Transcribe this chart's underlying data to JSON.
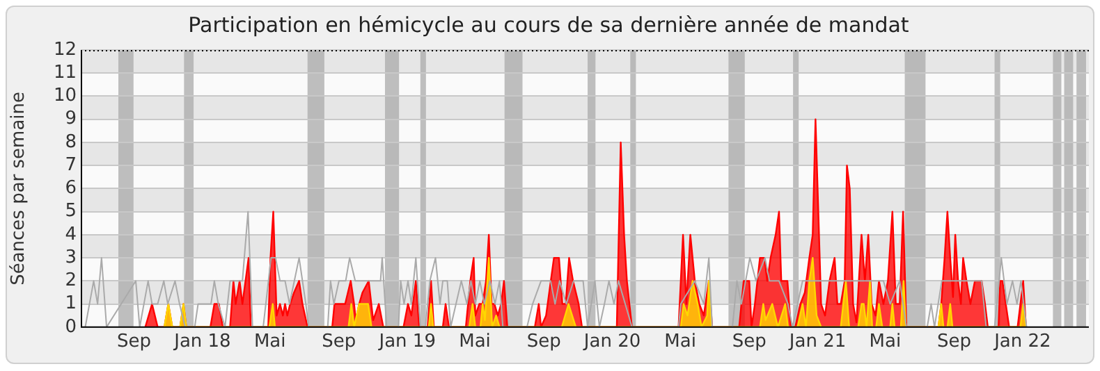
{
  "chart_data": {
    "type": "area",
    "title": "Participation en hémicycle au cours de sa dernière année de mandat",
    "ylabel": "Séances par semaine",
    "xlim": [
      "2017-05-29",
      "2022-04-29"
    ],
    "ylim": [
      0,
      12
    ],
    "yticks": [
      0,
      1,
      2,
      3,
      4,
      5,
      6,
      7,
      8,
      9,
      10,
      11,
      12
    ],
    "xticks": [
      {
        "value": "2017-09-01",
        "label": "Sep"
      },
      {
        "value": "2018-01-01",
        "label": "Jan 18"
      },
      {
        "value": "2018-05-01",
        "label": "Mai"
      },
      {
        "value": "2018-09-01",
        "label": "Sep"
      },
      {
        "value": "2019-01-01",
        "label": "Jan 19"
      },
      {
        "value": "2019-05-01",
        "label": "Mai"
      },
      {
        "value": "2019-09-01",
        "label": "Sep"
      },
      {
        "value": "2020-01-01",
        "label": "Jan 20"
      },
      {
        "value": "2020-05-01",
        "label": "Mai"
      },
      {
        "value": "2020-09-01",
        "label": "Sep"
      },
      {
        "value": "2021-01-01",
        "label": "Jan 21"
      },
      {
        "value": "2021-05-01",
        "label": "Mai"
      },
      {
        "value": "2021-09-01",
        "label": "Sep"
      },
      {
        "value": "2022-01-01",
        "label": "Jan 22"
      }
    ],
    "grid": "y",
    "legend": false,
    "marker": "none",
    "series": [
      {
        "type": "line",
        "color": "#aaaaaa",
        "x": [
          "2017-06-06",
          "2017-06-21",
          "2017-06-28",
          "2017-07-05",
          "2017-07-14",
          "2017-09-04",
          "2017-09-11",
          "2017-09-26",
          "2017-10-03",
          "2017-10-13",
          "2017-10-24",
          "2017-10-31",
          "2017-11-13",
          "2017-11-21",
          "2017-12-01",
          "2017-12-18",
          "2017-12-24",
          "2018-01-16",
          "2018-01-22",
          "2018-01-29",
          "2018-02-10",
          "2018-02-19",
          "2018-03-13",
          "2018-03-23",
          "2018-03-31",
          "2018-04-19",
          "2018-05-03",
          "2018-05-11",
          "2018-05-19",
          "2018-05-28",
          "2018-06-05",
          "2018-06-22",
          "2018-07-04",
          "2018-07-09",
          "2018-08-12",
          "2018-08-17",
          "2018-08-23",
          "2018-09-01",
          "2018-09-13",
          "2018-09-20",
          "2018-09-30",
          "2018-11-14",
          "2018-11-17",
          "2018-11-25",
          "2018-12-16",
          "2018-12-20",
          "2018-12-26",
          "2019-01-02",
          "2019-01-08",
          "2019-01-16",
          "2019-01-24",
          "2019-02-02",
          "2019-02-10",
          "2019-02-20",
          "2019-02-28",
          "2019-03-05",
          "2019-03-13",
          "2019-03-19",
          "2019-04-07",
          "2019-04-17",
          "2019-04-24",
          "2019-05-02",
          "2019-05-10",
          "2019-05-18",
          "2019-05-28",
          "2019-06-06",
          "2019-06-14",
          "2019-06-20",
          "2019-08-02",
          "2019-08-12",
          "2019-08-27",
          "2019-09-13",
          "2019-09-21",
          "2019-09-29",
          "2019-10-11",
          "2019-10-24",
          "2019-11-10",
          "2019-11-18",
          "2019-12-01",
          "2019-12-09",
          "2019-12-18",
          "2019-12-26",
          "2020-01-04",
          "2020-01-12",
          "2020-02-05",
          "2020-04-28",
          "2020-05-02",
          "2020-05-27",
          "2020-06-12",
          "2020-06-21",
          "2020-06-27",
          "2020-08-02",
          "2020-08-10",
          "2020-08-18",
          "2020-09-02",
          "2020-09-13",
          "2020-09-29",
          "2020-10-07",
          "2020-10-24",
          "2020-11-09",
          "2020-11-17",
          "2020-12-05",
          "2020-12-21",
          "2021-01-15",
          "2021-02-09",
          "2021-03-13",
          "2021-04-11",
          "2021-04-28",
          "2021-05-10",
          "2021-05-27",
          "2021-06-08",
          "2021-07-15",
          "2021-07-22",
          "2021-07-28",
          "2021-08-10",
          "2021-08-27",
          "2021-09-21",
          "2021-10-08",
          "2021-10-20",
          "2021-10-28",
          "2021-11-12",
          "2021-11-24",
          "2021-12-04",
          "2021-12-14",
          "2021-12-22",
          "2021-12-29",
          "2022-01-08"
        ],
        "values": [
          0,
          2,
          1,
          3,
          0,
          2,
          0,
          2,
          1,
          1,
          2,
          1,
          2,
          1,
          0,
          0,
          1,
          1,
          2,
          1,
          0,
          2,
          2,
          5,
          0,
          0,
          3,
          3,
          2,
          2,
          1,
          3,
          1,
          0,
          0,
          2,
          1,
          2,
          2,
          3,
          2,
          2,
          3,
          0,
          0,
          2,
          1,
          2,
          1,
          3,
          0,
          0,
          2,
          3,
          1,
          2,
          2,
          0,
          2,
          1,
          2,
          1,
          2,
          1,
          2,
          1,
          2,
          0,
          0,
          1,
          2,
          2,
          1,
          2,
          1,
          2,
          2,
          0,
          2,
          0,
          1,
          2,
          1,
          2,
          0,
          0,
          1,
          2,
          1,
          3,
          0,
          0,
          2,
          1,
          3,
          2,
          3,
          2,
          2,
          1,
          0,
          2,
          2,
          2,
          2,
          2,
          2,
          2,
          1,
          2,
          0,
          0,
          1,
          0,
          2,
          2,
          2,
          2,
          2,
          0,
          0,
          3,
          1,
          2,
          1,
          2,
          0
        ]
      },
      {
        "type": "area",
        "color": "#ff0000",
        "x": [
          "2017-09-21",
          "2017-10-03",
          "2017-10-13",
          "2017-10-25",
          "2017-11-01",
          "2017-11-08",
          "2017-11-22",
          "2017-11-28",
          "2017-12-03",
          "2018-01-15",
          "2018-01-22",
          "2018-01-30",
          "2018-02-06",
          "2018-02-19",
          "2018-02-25",
          "2018-03-01",
          "2018-03-08",
          "2018-03-13",
          "2018-03-24",
          "2018-03-28",
          "2018-04-28",
          "2018-05-02",
          "2018-05-07",
          "2018-05-13",
          "2018-05-19",
          "2018-05-24",
          "2018-05-28",
          "2018-06-01",
          "2018-06-06",
          "2018-06-13",
          "2018-06-22",
          "2018-06-28",
          "2018-07-07",
          "2018-08-20",
          "2018-08-24",
          "2018-09-12",
          "2018-09-22",
          "2018-09-28",
          "2018-10-01",
          "2018-10-07",
          "2018-10-13",
          "2018-10-24",
          "2018-11-01",
          "2018-11-11",
          "2018-11-19",
          "2018-12-25",
          "2019-01-02",
          "2019-01-08",
          "2019-01-16",
          "2019-01-22",
          "2019-02-06",
          "2019-02-12",
          "2019-02-17",
          "2019-03-05",
          "2019-03-10",
          "2019-03-16",
          "2019-04-15",
          "2019-04-23",
          "2019-04-29",
          "2019-05-02",
          "2019-05-09",
          "2019-05-15",
          "2019-05-21",
          "2019-05-26",
          "2019-05-31",
          "2019-06-05",
          "2019-06-11",
          "2019-06-17",
          "2019-06-22",
          "2019-06-28",
          "2019-08-16",
          "2019-08-23",
          "2019-08-27",
          "2019-09-05",
          "2019-09-19",
          "2019-09-28",
          "2019-10-04",
          "2019-10-10",
          "2019-10-16",
          "2019-10-23",
          "2019-11-02",
          "2019-11-08",
          "2020-01-09",
          "2020-01-16",
          "2020-01-22",
          "2020-01-27",
          "2020-02-05",
          "2020-04-28",
          "2020-05-06",
          "2020-05-12",
          "2020-05-19",
          "2020-05-27",
          "2020-06-04",
          "2020-06-12",
          "2020-06-21",
          "2020-06-27",
          "2020-08-14",
          "2020-08-22",
          "2020-09-01",
          "2020-09-05",
          "2020-09-11",
          "2020-09-20",
          "2020-09-28",
          "2020-10-03",
          "2020-10-09",
          "2020-10-18",
          "2020-10-24",
          "2020-10-28",
          "2020-11-08",
          "2020-11-14",
          "2020-11-22",
          "2020-12-01",
          "2020-12-09",
          "2020-12-17",
          "2020-12-23",
          "2020-12-28",
          "2021-01-02",
          "2021-01-07",
          "2021-01-14",
          "2021-01-22",
          "2021-01-31",
          "2021-02-05",
          "2021-02-11",
          "2021-02-18",
          "2021-02-22",
          "2021-02-27",
          "2021-03-05",
          "2021-03-11",
          "2021-03-20",
          "2021-03-26",
          "2021-04-01",
          "2021-04-07",
          "2021-04-14",
          "2021-04-20",
          "2021-04-28",
          "2021-05-06",
          "2021-05-14",
          "2021-05-20",
          "2021-05-27",
          "2021-06-02",
          "2021-06-08",
          "2021-08-04",
          "2021-08-09",
          "2021-08-15",
          "2021-08-20",
          "2021-08-25",
          "2021-08-30",
          "2021-09-03",
          "2021-09-08",
          "2021-09-13",
          "2021-09-17",
          "2021-09-23",
          "2021-09-30",
          "2021-10-08",
          "2021-10-20",
          "2021-10-26",
          "2021-10-31",
          "2021-11-19",
          "2021-11-22",
          "2021-11-26",
          "2021-12-02",
          "2021-12-08",
          "2021-12-23",
          "2022-01-02",
          "2022-01-07"
        ],
        "values": [
          0,
          1,
          0,
          0,
          1,
          0,
          0,
          1,
          0,
          0,
          1,
          1,
          0,
          0,
          2,
          1,
          2,
          1,
          3,
          0,
          0,
          3,
          5,
          0.5,
          1,
          0.5,
          1,
          0.5,
          1,
          1.5,
          2,
          1,
          0,
          0,
          1,
          1,
          2,
          1,
          0.3,
          1,
          1.5,
          2,
          0.3,
          1,
          0,
          0,
          1,
          0.5,
          2,
          0,
          0,
          2,
          0,
          0,
          1,
          0,
          0,
          2,
          3,
          0.5,
          1,
          1,
          2,
          4,
          1,
          1,
          0.5,
          1,
          2,
          0,
          0,
          1,
          0,
          0.5,
          3,
          3,
          1,
          1,
          3,
          2,
          1,
          0,
          0,
          8,
          4,
          2,
          0,
          0,
          4,
          1,
          4,
          2,
          1,
          0.5,
          2,
          0,
          0,
          2,
          2,
          0,
          1,
          3,
          3,
          2,
          3,
          4,
          5,
          2,
          2,
          0,
          0,
          1,
          1.5,
          3,
          4,
          9,
          5,
          1,
          0.5,
          2,
          3,
          1,
          1,
          2,
          7,
          6,
          1,
          0.2,
          4,
          2,
          4,
          1,
          0.5,
          2,
          1,
          2,
          5,
          1,
          1,
          5,
          0,
          0,
          1,
          3,
          5,
          3,
          1.3,
          4,
          2,
          1,
          3,
          2,
          1,
          2,
          2,
          1,
          0,
          0,
          2,
          2,
          1,
          0,
          0,
          2,
          0
        ]
      },
      {
        "type": "area",
        "color": "#ffd700",
        "x": [
          "2017-10-25",
          "2017-11-01",
          "2017-11-08",
          "2017-11-22",
          "2017-11-28",
          "2017-12-03",
          "2018-04-30",
          "2018-05-06",
          "2018-05-10",
          "2018-09-18",
          "2018-09-23",
          "2018-09-28",
          "2018-10-07",
          "2018-10-16",
          "2018-10-23",
          "2018-10-29",
          "2019-02-08",
          "2019-02-12",
          "2019-02-16",
          "2019-04-21",
          "2019-04-27",
          "2019-05-02",
          "2019-05-11",
          "2019-05-15",
          "2019-05-19",
          "2019-05-26",
          "2019-06-01",
          "2019-06-08",
          "2019-06-14",
          "2019-10-03",
          "2019-10-15",
          "2019-10-28",
          "2020-05-02",
          "2020-05-07",
          "2020-05-14",
          "2020-05-23",
          "2020-06-01",
          "2020-06-08",
          "2020-06-18",
          "2020-06-21",
          "2020-06-26",
          "2020-09-20",
          "2020-09-26",
          "2020-09-30",
          "2020-10-12",
          "2020-10-17",
          "2020-10-22",
          "2020-11-04",
          "2020-11-09",
          "2020-11-26",
          "2020-12-05",
          "2020-12-11",
          "2020-12-17",
          "2020-12-23",
          "2020-12-30",
          "2021-01-07",
          "2021-02-11",
          "2021-02-20",
          "2021-02-26",
          "2021-03-14",
          "2021-03-20",
          "2021-03-24",
          "2021-03-29",
          "2021-04-04",
          "2021-04-08",
          "2021-04-15",
          "2021-04-20",
          "2021-04-26",
          "2021-05-10",
          "2021-05-14",
          "2021-05-18",
          "2021-05-29",
          "2021-06-03",
          "2021-06-07",
          "2021-08-04",
          "2021-08-09",
          "2021-08-13",
          "2021-08-20",
          "2021-08-25",
          "2021-08-29",
          "2021-12-28",
          "2022-01-02",
          "2022-01-07"
        ],
        "values": [
          0,
          1,
          0,
          0,
          1,
          0,
          0,
          1,
          0,
          0,
          1,
          0,
          1,
          1,
          1,
          0,
          0,
          1,
          0,
          0,
          1,
          0,
          0,
          1,
          0.3,
          3,
          0,
          0.5,
          0,
          0,
          1,
          0,
          0,
          1,
          0.5,
          2,
          1,
          0,
          0.5,
          2,
          0,
          0,
          1,
          0.3,
          1,
          0.5,
          0,
          1,
          0,
          0,
          1,
          0,
          2,
          3,
          0.5,
          0,
          0,
          2,
          0,
          0,
          1,
          1,
          0,
          2,
          0,
          0,
          1,
          0,
          0,
          1,
          0,
          0,
          2,
          0,
          0,
          1,
          0,
          0,
          1,
          0,
          0,
          1,
          0
        ]
      }
    ],
    "bands": [
      {
        "axis": "x",
        "from": "2017-08-04",
        "to": "2017-08-31",
        "color": "#aaaaaa"
      },
      {
        "axis": "x",
        "from": "2017-11-29",
        "to": "2017-12-16",
        "color": "#aaaaaa"
      },
      {
        "axis": "x",
        "from": "2018-07-07",
        "to": "2018-08-06",
        "color": "#aaaaaa"
      },
      {
        "axis": "x",
        "from": "2018-11-22",
        "to": "2018-12-17",
        "color": "#aaaaaa"
      },
      {
        "axis": "x",
        "from": "2019-01-24",
        "to": "2019-02-03",
        "color": "#aaaaaa"
      },
      {
        "axis": "x",
        "from": "2019-06-23",
        "to": "2019-07-25",
        "color": "#aaaaaa"
      },
      {
        "axis": "x",
        "from": "2019-11-18",
        "to": "2019-12-02",
        "color": "#aaaaaa"
      },
      {
        "axis": "x",
        "from": "2020-02-02",
        "to": "2020-02-12",
        "color": "#aaaaaa"
      },
      {
        "axis": "x",
        "from": "2020-07-26",
        "to": "2020-08-24",
        "color": "#aaaaaa"
      },
      {
        "axis": "x",
        "from": "2020-11-18",
        "to": "2020-11-28",
        "color": "#aaaaaa"
      },
      {
        "axis": "x",
        "from": "2021-06-05",
        "to": "2021-07-12",
        "color": "#aaaaaa"
      },
      {
        "axis": "x",
        "from": "2021-11-12",
        "to": "2021-11-22",
        "color": "#aaaaaa"
      },
      {
        "axis": "x",
        "from": "2022-02-24",
        "to": "2022-03-11",
        "color": "#aaaaaa"
      },
      {
        "axis": "x",
        "from": "2022-03-16",
        "to": "2022-04-01",
        "color": "#aaaaaa"
      },
      {
        "axis": "x",
        "from": "2022-04-07",
        "to": "2022-04-24",
        "color": "#aaaaaa"
      }
    ]
  }
}
